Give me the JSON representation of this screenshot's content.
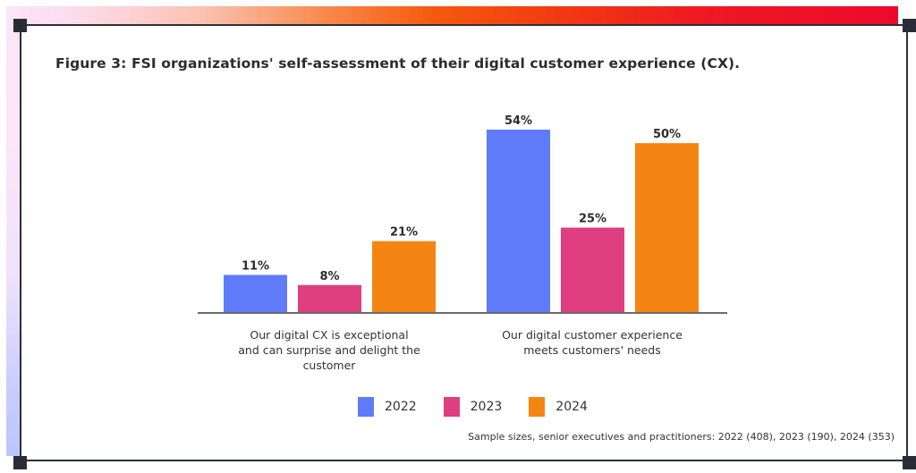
{
  "chart_data": {
    "type": "bar",
    "title": "Figure 3: FSI organizations' self-assessment of their digital customer experience (CX).",
    "xlabel": "",
    "ylabel": "",
    "ylim": [
      0,
      60
    ],
    "grid": false,
    "categories": [
      "Our digital CX is exceptional and can surprise and delight the customer",
      "Our digital customer experience meets customers' needs"
    ],
    "category_label_lines": [
      [
        "Our digital CX is exceptional",
        "and can surprise and delight the",
        "customer"
      ],
      [
        "Our digital customer experience",
        "meets customers' needs"
      ]
    ],
    "series": [
      {
        "name": "2022",
        "color": "#5f7bfa",
        "values": [
          11,
          54
        ],
        "labels": [
          "11%",
          "54%"
        ]
      },
      {
        "name": "2023",
        "color": "#df3e80",
        "values": [
          8,
          25
        ],
        "labels": [
          "8%",
          "25%"
        ]
      },
      {
        "name": "2024",
        "color": "#f58513",
        "values": [
          21,
          50
        ],
        "labels": [
          "21%",
          "50%"
        ]
      }
    ],
    "legend_position": "bottom-center",
    "footnote": "Sample sizes, senior executives and practitioners: 2022 (408), 2023 (190), 2024 (353)"
  },
  "theme": {
    "frame_color": "#2e2f36",
    "axis_color": "#6b6b6b"
  }
}
